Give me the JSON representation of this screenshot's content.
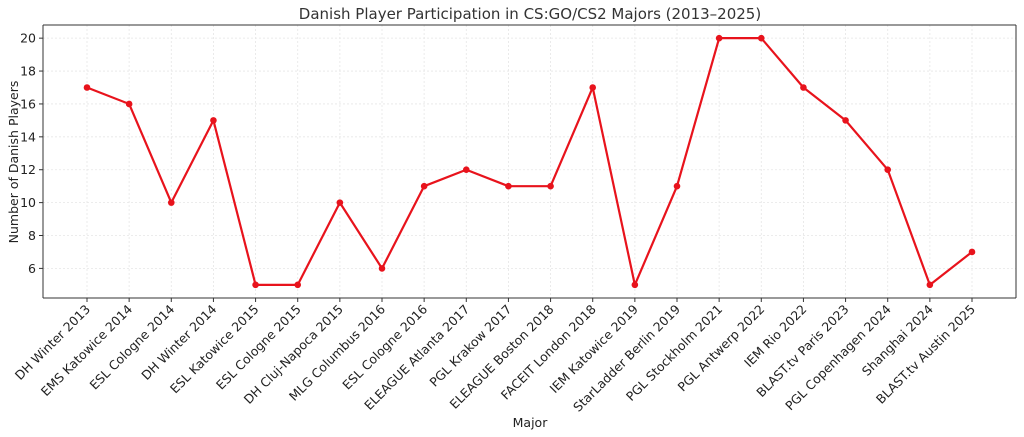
{
  "chart_data": {
    "type": "line",
    "title": "Danish Player Participation in CS:GO/CS2 Majors (2013–2025)",
    "xlabel": "Major",
    "ylabel": "Number of Danish Players",
    "ylim": [
      4.2,
      20.8
    ],
    "yticks": [
      6,
      8,
      10,
      12,
      14,
      16,
      18,
      20
    ],
    "grid": true,
    "categories": [
      "DH Winter 2013",
      "EMS Katowice 2014",
      "ESL Cologne 2014",
      "DH Winter 2014",
      "ESL Katowice 2015",
      "ESL Cologne 2015",
      "DH Cluj-Napoca 2015",
      "MLG Columbus 2016",
      "ESL Cologne 2016",
      "ELEAGUE Atlanta 2017",
      "PGL Krakow 2017",
      "ELEAGUE Boston 2018",
      "FACEIT London 2018",
      "IEM Katowice 2019",
      "StarLadder Berlin 2019",
      "PGL Stockholm 2021",
      "PGL Antwerp 2022",
      "IEM Rio 2022",
      "BLAST.tv Paris 2023",
      "PGL Copenhagen 2024",
      "Shanghai 2024",
      "BLAST.tv Austin 2025"
    ],
    "series": [
      {
        "values": [
          17,
          16,
          10,
          15,
          5,
          5,
          10,
          6,
          11,
          12,
          11,
          11,
          17,
          5,
          11,
          20,
          20,
          17,
          15,
          12,
          5,
          7
        ],
        "color": "#e8131c",
        "marker": "circle"
      }
    ]
  }
}
